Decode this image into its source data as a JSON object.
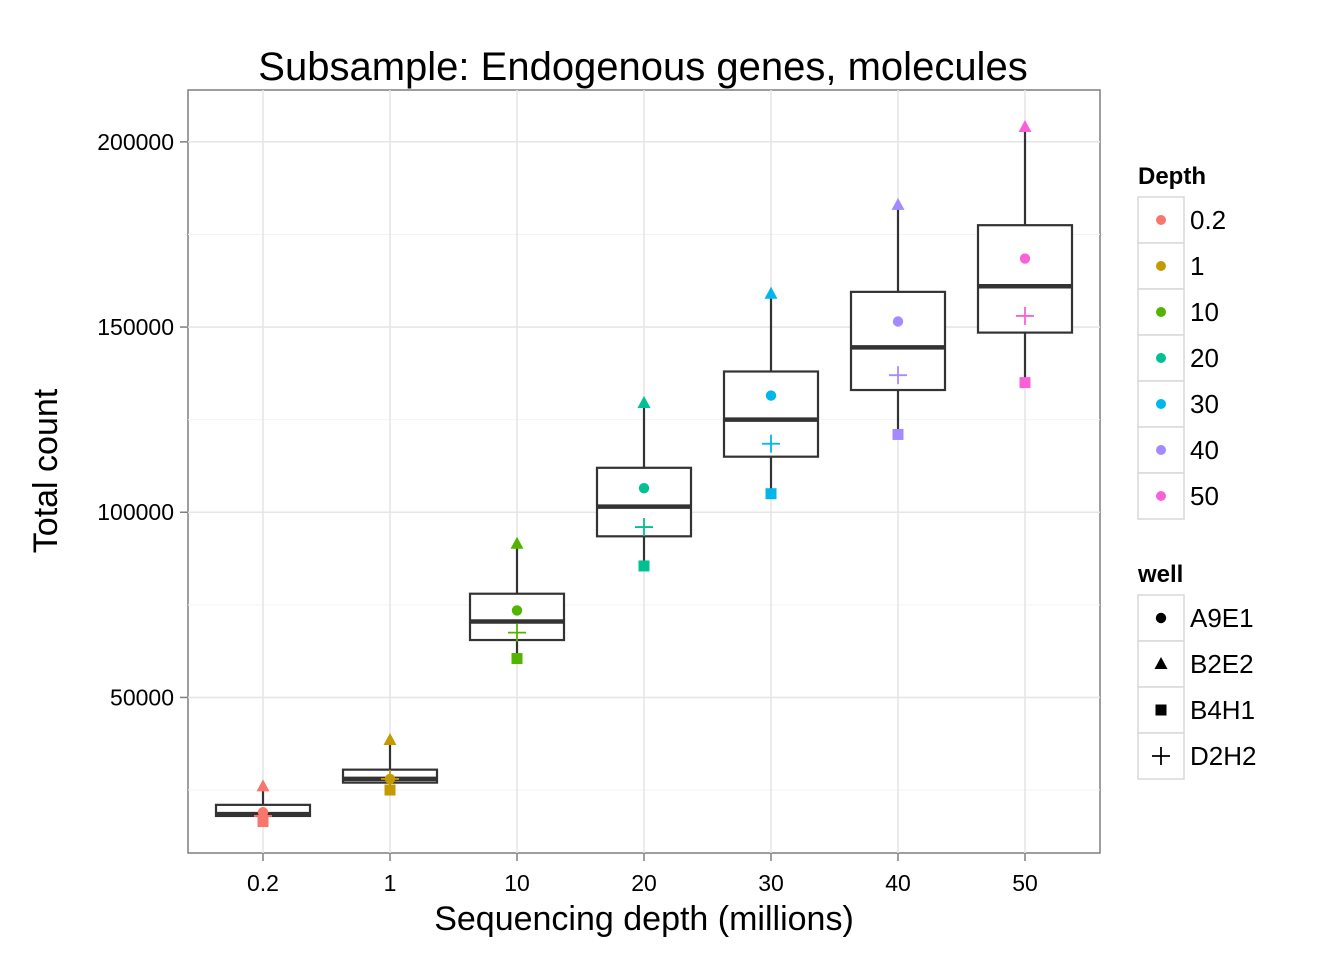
{
  "chart_data": {
    "type": "box",
    "title": "Subsample: Endogenous genes, molecules",
    "xlabel": "Sequencing depth (millions)",
    "ylabel": "Total count",
    "categories": [
      "0.2",
      "1",
      "10",
      "20",
      "30",
      "40",
      "50"
    ],
    "ylim": [
      8000,
      214000
    ],
    "yticks": [
      50000,
      100000,
      150000,
      200000
    ],
    "ytick_labels": [
      "50000",
      "100000",
      "150000",
      "200000"
    ],
    "grid": true,
    "colors": [
      "#F8766D",
      "#C49A00",
      "#53B400",
      "#00C094",
      "#00B6EB",
      "#A58AFF",
      "#FB61D7"
    ],
    "boxes": [
      {
        "category": "0.2",
        "q1": 18000,
        "median": 18500,
        "q3": 21000,
        "whisker_low": 16500,
        "whisker_high": 26000
      },
      {
        "category": "1",
        "q1": 27000,
        "median": 28000,
        "q3": 30500,
        "whisker_low": 25000,
        "whisker_high": 38500
      },
      {
        "category": "10",
        "q1": 65500,
        "median": 70500,
        "q3": 78000,
        "whisker_low": 60500,
        "whisker_high": 91500
      },
      {
        "category": "20",
        "q1": 93500,
        "median": 101500,
        "q3": 112000,
        "whisker_low": 85500,
        "whisker_high": 129500
      },
      {
        "category": "30",
        "q1": 115000,
        "median": 125000,
        "q3": 138000,
        "whisker_low": 105000,
        "whisker_high": 159000
      },
      {
        "category": "40",
        "q1": 133000,
        "median": 144500,
        "q3": 159500,
        "whisker_low": 121000,
        "whisker_high": 183000
      },
      {
        "category": "50",
        "q1": 148500,
        "median": 161000,
        "q3": 177500,
        "whisker_low": 135000,
        "whisker_high": 204000
      }
    ],
    "series": [
      {
        "name": "A9E1",
        "shape": "circle",
        "values": [
          19000,
          28000,
          73500,
          106500,
          131500,
          151500,
          168500
        ]
      },
      {
        "name": "B2E2",
        "shape": "triangle",
        "values": [
          26000,
          38500,
          91500,
          129500,
          159000,
          183000,
          204000
        ]
      },
      {
        "name": "B4H1",
        "shape": "square",
        "values": [
          16500,
          25000,
          60500,
          85500,
          105000,
          121000,
          135000
        ]
      },
      {
        "name": "D2H2",
        "shape": "plus",
        "values": [
          18000,
          28000,
          67500,
          96000,
          118500,
          137000,
          153000
        ]
      }
    ],
    "legends": [
      {
        "title": "Depth",
        "entries": [
          "0.2",
          "1",
          "10",
          "20",
          "30",
          "40",
          "50"
        ]
      },
      {
        "title": "well",
        "entries": [
          "A9E1",
          "B2E2",
          "B4H1",
          "D2H2"
        ]
      }
    ],
    "legend_position": "right"
  }
}
